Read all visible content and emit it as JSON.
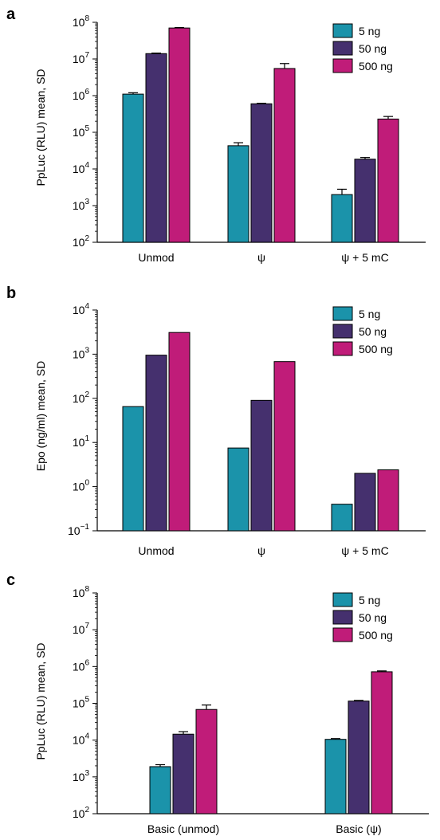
{
  "colors": {
    "5 ng": "#1b93aa",
    "50 ng": "#45306e",
    "500 ng": "#c01c79"
  },
  "chart_data": [
    {
      "panel_label": "a",
      "type": "bar",
      "log_scale": true,
      "ylabel": "PpLuc (RLU) mean, SD",
      "ylim": [
        100,
        100000000
      ],
      "yticks": [
        {
          "base": "10",
          "exp": "2"
        },
        {
          "base": "10",
          "exp": "3"
        },
        {
          "base": "10",
          "exp": "4"
        },
        {
          "base": "10",
          "exp": "5"
        },
        {
          "base": "10",
          "exp": "6"
        },
        {
          "base": "10",
          "exp": "7"
        },
        {
          "base": "10",
          "exp": "8"
        }
      ],
      "categories": [
        "Unmod",
        "ψ",
        "ψ + 5 mC"
      ],
      "legend_position": "top-right",
      "series": [
        {
          "name": "5 ng",
          "values": [
            1100000,
            43000,
            2000
          ],
          "err_high": [
            1200000,
            52000,
            2800
          ]
        },
        {
          "name": "50 ng",
          "values": [
            14000000,
            600000,
            18500
          ],
          "err_high": [
            14500000,
            620000,
            20500
          ]
        },
        {
          "name": "500 ng",
          "values": [
            70000000,
            5500000,
            230000
          ],
          "err_high": [
            72000000,
            7500000,
            270000
          ]
        }
      ]
    },
    {
      "panel_label": "b",
      "type": "bar",
      "log_scale": true,
      "ylabel": "Epo (ng/ml) mean, SD",
      "ylim": [
        0.1,
        10000
      ],
      "yticks": [
        {
          "base": "10",
          "exp": "−1"
        },
        {
          "base": "10",
          "exp": "0"
        },
        {
          "base": "10",
          "exp": "1"
        },
        {
          "base": "10",
          "exp": "2"
        },
        {
          "base": "10",
          "exp": "3"
        },
        {
          "base": "10",
          "exp": "4"
        }
      ],
      "categories": [
        "Unmod",
        "ψ",
        "ψ + 5 mC"
      ],
      "legend_position": "top-right",
      "series": [
        {
          "name": "5 ng",
          "values": [
            65,
            7.5,
            0.4
          ]
        },
        {
          "name": "50 ng",
          "values": [
            950,
            90,
            2.0
          ]
        },
        {
          "name": "500 ng",
          "values": [
            3100,
            680,
            2.4
          ]
        }
      ]
    },
    {
      "panel_label": "c",
      "type": "bar",
      "log_scale": true,
      "ylabel": "PpLuc (RLU) mean, SD",
      "ylim": [
        100,
        100000000
      ],
      "yticks": [
        {
          "base": "10",
          "exp": "2"
        },
        {
          "base": "10",
          "exp": "3"
        },
        {
          "base": "10",
          "exp": "4"
        },
        {
          "base": "10",
          "exp": "5"
        },
        {
          "base": "10",
          "exp": "6"
        },
        {
          "base": "10",
          "exp": "7"
        },
        {
          "base": "10",
          "exp": "8"
        }
      ],
      "categories": [
        "Basic (unmod)",
        "Basic (ψ)"
      ],
      "legend_position": "top-right",
      "series": [
        {
          "name": "5 ng",
          "values": [
            1900,
            10500
          ],
          "err_high": [
            2150,
            11000
          ]
        },
        {
          "name": "50 ng",
          "values": [
            14500,
            115000
          ],
          "err_high": [
            17000,
            120000
          ]
        },
        {
          "name": "500 ng",
          "values": [
            68000,
            720000
          ],
          "err_high": [
            90000,
            760000
          ]
        }
      ]
    }
  ]
}
